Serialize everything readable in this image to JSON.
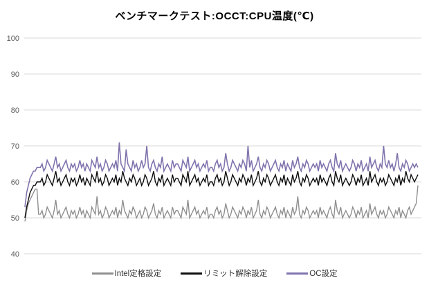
{
  "chart_data": {
    "type": "line",
    "title": "ベンチマークテスト:OCCT:CPU温度(℃)",
    "xlabel": "",
    "ylabel": "",
    "ylim": [
      40,
      100
    ],
    "y_ticks": [
      100,
      90,
      80,
      70,
      60,
      50,
      40
    ],
    "x_axis_labels_visible": false,
    "grid": "horizontal",
    "legend_position": "bottom",
    "colors": {
      "gridline": "#D9D9D9",
      "axis_text": "#595959",
      "background": "#FFFFFF",
      "title_text": "#000000"
    },
    "series": [
      {
        "name": "Intel定格設定",
        "color": "#8F8F8F",
        "approx_mean": 51.5,
        "values": [
          49,
          52,
          54,
          55,
          56,
          57,
          58,
          58,
          51,
          51,
          52,
          50,
          51,
          53,
          52,
          51,
          50,
          52,
          55,
          51,
          52,
          50,
          51,
          52,
          53,
          51,
          50,
          52,
          51,
          52,
          50,
          51,
          53,
          51,
          52,
          50,
          52,
          51,
          50,
          53,
          52,
          51,
          56,
          51,
          52,
          50,
          51,
          53,
          52,
          50,
          51,
          52,
          51,
          53,
          50,
          52,
          51,
          55,
          52,
          51,
          50,
          52,
          51,
          53,
          52,
          50,
          51,
          52,
          50,
          51,
          53,
          52,
          50,
          51,
          52,
          54,
          51,
          50,
          52,
          51,
          53,
          50,
          51,
          52,
          51,
          50,
          53,
          51,
          52,
          52,
          51,
          50,
          53,
          52,
          51,
          55,
          50,
          51,
          52,
          53,
          51,
          52,
          50,
          51,
          52,
          51,
          53,
          50,
          51,
          51,
          50,
          52,
          53,
          51,
          52,
          50,
          51,
          54,
          52,
          50,
          51,
          53,
          52,
          51,
          50,
          52,
          51,
          53,
          52,
          50,
          52,
          51,
          53,
          50,
          51,
          52,
          55,
          51,
          50,
          52,
          51,
          53,
          52,
          50,
          51,
          52,
          53,
          51,
          50,
          52,
          51,
          53,
          50,
          52,
          51,
          50,
          53,
          51,
          52,
          56,
          51,
          50,
          52,
          51,
          53,
          52,
          50,
          51,
          52,
          51,
          52,
          50,
          53,
          51,
          52,
          51,
          50,
          52,
          53,
          51,
          50,
          55,
          52,
          51,
          53,
          50,
          51,
          52,
          51,
          50,
          51,
          53,
          52,
          50,
          52,
          51,
          53,
          50,
          51,
          52,
          50,
          54,
          51,
          52,
          53,
          51,
          50,
          52,
          51,
          52,
          50,
          51,
          53,
          52,
          51,
          50,
          52,
          51,
          53,
          50,
          52,
          51,
          50,
          52,
          53,
          51,
          52,
          53,
          54,
          59
        ]
      },
      {
        "name": "リミット解除設定",
        "color": "#0D0D0D",
        "approx_mean": 60.5,
        "values": [
          50,
          53,
          55,
          57,
          58,
          59,
          59,
          60,
          60,
          60,
          61,
          59,
          60,
          62,
          61,
          60,
          59,
          61,
          63,
          60,
          61,
          59,
          60,
          61,
          62,
          60,
          59,
          61,
          60,
          61,
          59,
          60,
          62,
          60,
          61,
          59,
          61,
          60,
          59,
          62,
          61,
          60,
          63,
          60,
          61,
          59,
          60,
          62,
          61,
          59,
          60,
          61,
          60,
          62,
          59,
          61,
          60,
          63,
          61,
          60,
          59,
          61,
          60,
          62,
          61,
          59,
          60,
          61,
          59,
          60,
          62,
          61,
          59,
          60,
          61,
          63,
          60,
          59,
          61,
          60,
          62,
          59,
          60,
          61,
          60,
          59,
          62,
          60,
          61,
          61,
          60,
          59,
          62,
          61,
          60,
          63,
          59,
          60,
          61,
          62,
          60,
          61,
          59,
          60,
          61,
          60,
          62,
          59,
          60,
          60,
          59,
          61,
          62,
          60,
          61,
          59,
          60,
          63,
          61,
          59,
          60,
          62,
          61,
          60,
          59,
          61,
          60,
          62,
          61,
          59,
          61,
          60,
          62,
          59,
          60,
          61,
          63,
          60,
          59,
          61,
          60,
          62,
          61,
          59,
          60,
          61,
          62,
          60,
          59,
          61,
          60,
          62,
          59,
          61,
          60,
          59,
          62,
          60,
          61,
          63,
          60,
          59,
          61,
          60,
          62,
          61,
          59,
          60,
          61,
          60,
          61,
          59,
          62,
          60,
          61,
          60,
          59,
          61,
          62,
          60,
          59,
          63,
          61,
          60,
          62,
          59,
          60,
          61,
          60,
          59,
          60,
          62,
          61,
          59,
          61,
          60,
          62,
          59,
          60,
          61,
          59,
          63,
          60,
          61,
          62,
          60,
          59,
          61,
          60,
          61,
          59,
          60,
          62,
          61,
          60,
          59,
          61,
          60,
          62,
          59,
          61,
          60,
          63,
          61,
          60,
          62,
          61,
          60,
          61,
          62
        ]
      },
      {
        "name": "OC設定",
        "color": "#8173AD",
        "approx_mean": 64.5,
        "values": [
          53,
          57,
          59,
          61,
          62,
          63,
          63,
          64,
          64,
          64,
          65,
          63,
          64,
          66,
          65,
          64,
          63,
          65,
          67,
          64,
          65,
          63,
          64,
          65,
          66,
          64,
          63,
          65,
          64,
          65,
          63,
          64,
          66,
          64,
          65,
          63,
          65,
          64,
          63,
          66,
          65,
          64,
          67,
          64,
          65,
          63,
          64,
          66,
          65,
          63,
          64,
          65,
          64,
          66,
          63,
          71,
          65,
          64,
          63,
          69,
          65,
          64,
          63,
          66,
          64,
          65,
          63,
          64,
          66,
          64,
          65,
          70,
          64,
          63,
          65,
          66,
          64,
          63,
          65,
          64,
          67,
          63,
          64,
          65,
          64,
          63,
          66,
          64,
          65,
          65,
          64,
          63,
          66,
          65,
          64,
          67,
          63,
          64,
          65,
          66,
          64,
          65,
          63,
          64,
          65,
          64,
          66,
          63,
          64,
          64,
          63,
          65,
          66,
          64,
          65,
          63,
          64,
          68,
          65,
          63,
          64,
          66,
          65,
          64,
          63,
          65,
          64,
          66,
          65,
          63,
          70,
          64,
          66,
          63,
          64,
          65,
          67,
          64,
          63,
          65,
          64,
          66,
          65,
          63,
          64,
          65,
          66,
          64,
          63,
          65,
          64,
          66,
          63,
          65,
          64,
          63,
          66,
          64,
          65,
          67,
          64,
          63,
          65,
          64,
          66,
          65,
          63,
          64,
          65,
          64,
          65,
          63,
          66,
          64,
          65,
          64,
          63,
          65,
          66,
          64,
          63,
          68,
          65,
          64,
          66,
          63,
          64,
          65,
          64,
          63,
          64,
          66,
          65,
          63,
          65,
          64,
          66,
          63,
          64,
          65,
          63,
          67,
          64,
          65,
          66,
          64,
          63,
          65,
          64,
          70,
          65,
          64,
          66,
          64,
          65,
          63,
          65,
          68,
          64,
          63,
          65,
          64,
          66,
          65,
          63,
          64,
          65,
          64,
          65,
          64
        ]
      }
    ]
  }
}
